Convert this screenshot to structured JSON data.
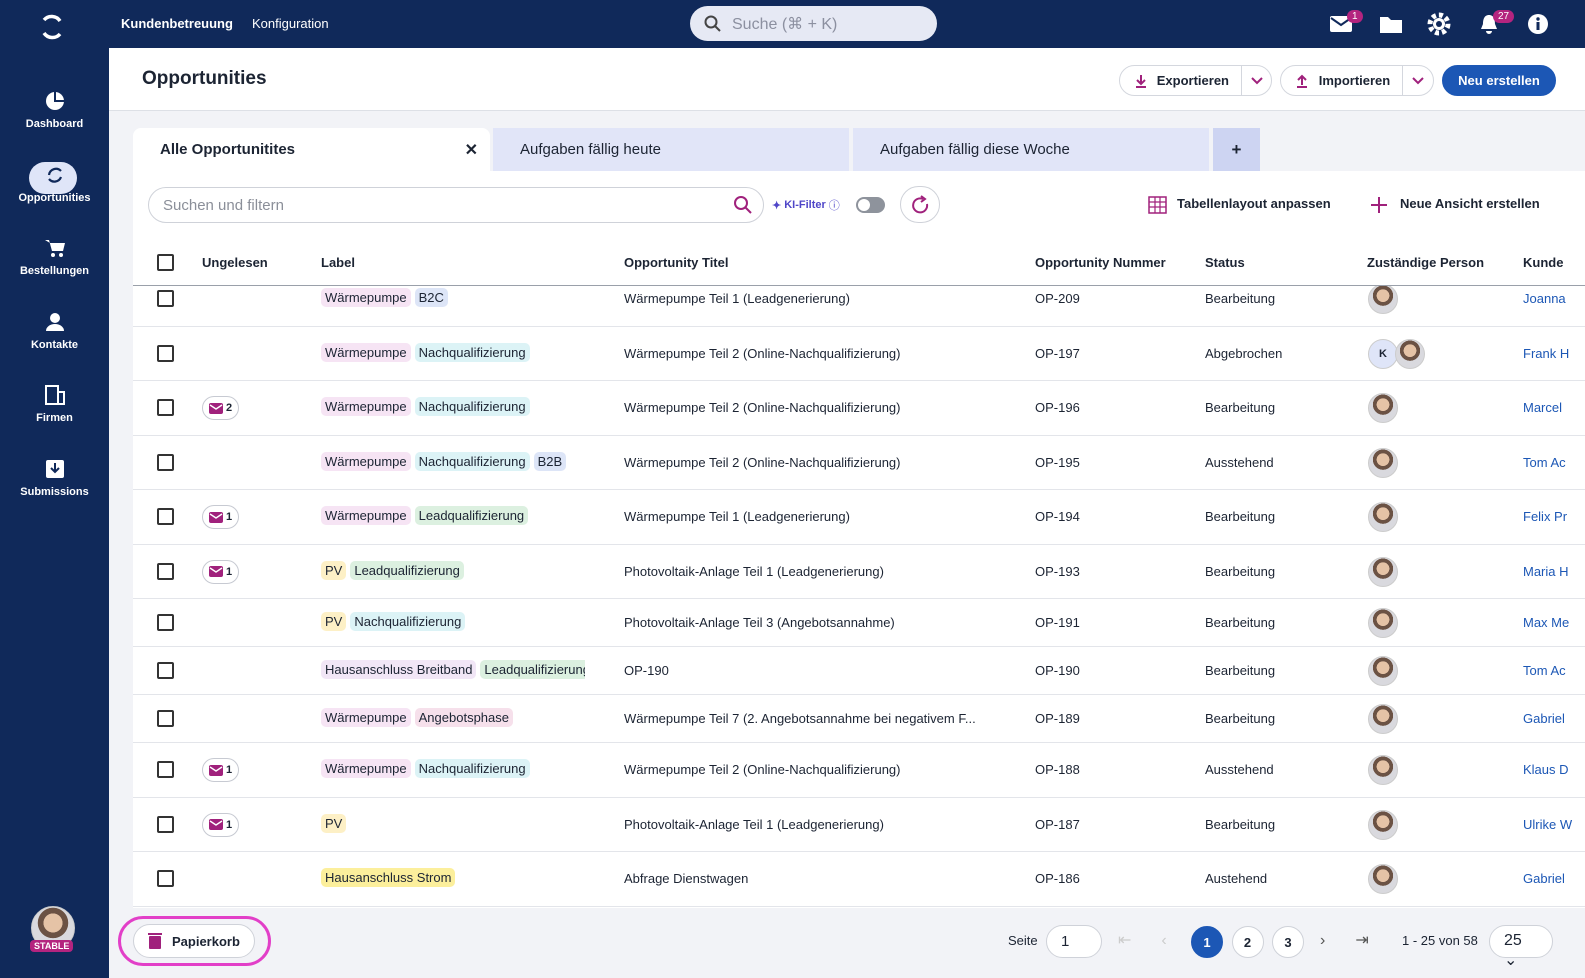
{
  "topnav": {
    "links": [
      "Kundenbetreuung",
      "Konfiguration"
    ],
    "search": "Suche (⌘ + K)",
    "mail_badge": "1",
    "bell_badge": "27"
  },
  "sidebar": {
    "items": [
      "Dashboard",
      "Opportunities",
      "Bestellungen",
      "Kontakte",
      "Firmen",
      "Submissions"
    ],
    "user_badge": "STABLE"
  },
  "header": {
    "title": "Opportunities",
    "buttons": [
      "Exportieren",
      "Importieren",
      "Neu erstellen"
    ]
  },
  "tabs": {
    "items": [
      "Alle Opportunitites",
      "Aufgaben fällig heute",
      "Aufgaben fällig diese Woche"
    ],
    "add": "+"
  },
  "toolbar": {
    "search": "Suchen und filtern",
    "ai_filter": "KI-Filter",
    "layout": "Tabellenlayout anpassen",
    "new_view": "Neue Ansicht erstellen"
  },
  "table": {
    "columns": [
      "Ungelesen",
      "Label",
      "Opportunity Titel",
      "Opportunity Nummer",
      "Status",
      "Zuständige Person",
      "Kunde"
    ],
    "rows": [
      {
        "unread": null,
        "labels": [
          {
            "text": "Wärmepumpe",
            "color": "#f6e4f4"
          },
          {
            "text": "B2C",
            "color": "#dde5f7"
          }
        ],
        "title": "Wärmepumpe Teil 1 (Leadgenerierung)",
        "number": "OP-209",
        "status": "Bearbeitung",
        "customer": "Joanna"
      },
      {
        "unread": null,
        "labels": [
          {
            "text": "Wärmepumpe",
            "color": "#f6e4f4"
          },
          {
            "text": "Nachqualifizierung",
            "color": "#dcf3f6"
          }
        ],
        "title": "Wärmepumpe Teil 2 (Online-Nachqualifizierung)",
        "number": "OP-197",
        "status": "Abgebrochen",
        "avatar_initial": "K",
        "customer": "Frank H"
      },
      {
        "unread": "2",
        "labels": [
          {
            "text": "Wärmepumpe",
            "color": "#f6e4f4"
          },
          {
            "text": "Nachqualifizierung",
            "color": "#dcf3f6"
          }
        ],
        "title": "Wärmepumpe Teil 2 (Online-Nachqualifizierung)",
        "number": "OP-196",
        "status": "Bearbeitung",
        "customer": "Marcel"
      },
      {
        "unread": null,
        "labels": [
          {
            "text": "Wärmepumpe",
            "color": "#f6e4f4"
          },
          {
            "text": "Nachqualifizierung",
            "color": "#dcf3f6"
          },
          {
            "text": "B2B",
            "color": "#dde5f7"
          }
        ],
        "title": "Wärmepumpe Teil 2 (Online-Nachqualifizierung)",
        "number": "OP-195",
        "status": "Ausstehend",
        "customer": "Tom Ac"
      },
      {
        "unread": "1",
        "labels": [
          {
            "text": "Wärmepumpe",
            "color": "#f6e4f4"
          },
          {
            "text": "Leadqualifizierung",
            "color": "#dcf0e0"
          }
        ],
        "title": "Wärmepumpe Teil 1 (Leadgenerierung)",
        "number": "OP-194",
        "status": "Bearbeitung",
        "customer": "Felix Pr"
      },
      {
        "unread": "1",
        "labels": [
          {
            "text": "PV",
            "color": "#fdf0c6"
          },
          {
            "text": "Leadqualifizierung",
            "color": "#dcf0e0"
          }
        ],
        "title": "Photovoltaik-Anlage Teil 1 (Leadgenerierung)",
        "number": "OP-193",
        "status": "Bearbeitung",
        "customer": "Maria H"
      },
      {
        "unread": null,
        "labels": [
          {
            "text": "PV",
            "color": "#fdf0c6"
          },
          {
            "text": "Nachqualifizierung",
            "color": "#dcf3f6"
          }
        ],
        "title": "Photovoltaik-Anlage Teil 3 (Angebotsannahme)",
        "number": "OP-191",
        "status": "Bearbeitung",
        "customer": "Max Me"
      },
      {
        "unread": null,
        "labels": [
          {
            "text": "Hausanschluss Breitband",
            "color": "#f1e6f6"
          },
          {
            "text": "Leadqualifizierung",
            "color": "#dcf0e0"
          }
        ],
        "title": "OP-190",
        "number": "OP-190",
        "status": "Bearbeitung",
        "customer": "Tom Ac"
      },
      {
        "unread": null,
        "labels": [
          {
            "text": "Wärmepumpe",
            "color": "#f6e4f4"
          },
          {
            "text": "Angebotsphase",
            "color": "#f6e0eb"
          }
        ],
        "title": "Wärmepumpe Teil 7 (2. Angebotsannahme bei negativem F...",
        "number": "OP-189",
        "status": "Bearbeitung",
        "customer": "Gabriel"
      },
      {
        "unread": "1",
        "labels": [
          {
            "text": "Wärmepumpe",
            "color": "#f6e4f4"
          },
          {
            "text": "Nachqualifizierung",
            "color": "#dcf3f6"
          }
        ],
        "title": "Wärmepumpe Teil 2 (Online-Nachqualifizierung)",
        "number": "OP-188",
        "status": "Ausstehend",
        "customer": "Klaus D"
      },
      {
        "unread": "1",
        "labels": [
          {
            "text": "PV",
            "color": "#fdf0c6"
          }
        ],
        "title": "Photovoltaik-Anlage Teil 1 (Leadgenerierung)",
        "number": "OP-187",
        "status": "Bearbeitung",
        "customer": "Ulrike W"
      },
      {
        "unread": null,
        "labels": [
          {
            "text": "Hausanschluss Strom",
            "color": "#fcef9c"
          }
        ],
        "title": "Abfrage Dienstwagen",
        "number": "OP-186",
        "status": "Austehend",
        "customer": "Gabriel"
      }
    ]
  },
  "footer": {
    "trash": "Papierkorb",
    "page_label": "Seite",
    "page_input": "1",
    "pages": [
      "1",
      "2",
      "3"
    ],
    "range": "1 - 25 von 58",
    "per_page": "25"
  }
}
